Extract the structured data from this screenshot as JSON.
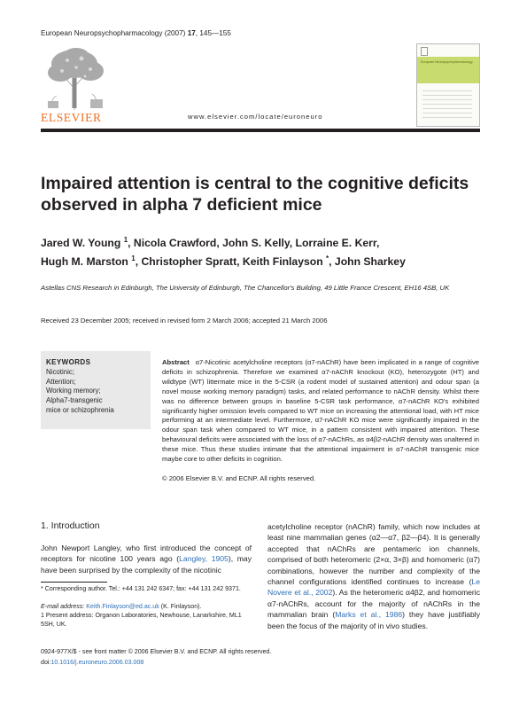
{
  "header": {
    "journal_name": "European Neuropsychopharmacology (2007)",
    "volume": "17",
    "pages": ", 145—155",
    "publisher": "ELSEVIER",
    "url": "www.elsevier.com/locate/euroneuro",
    "cover_title": "European Neuropsychopharmacology"
  },
  "article": {
    "title": "Impaired attention is central to the cognitive deficits observed in alpha 7 deficient mice",
    "authors_line1": [
      "Jared W. Young ",
      "1",
      ", Nicola Crawford, John S. Kelly, Lorraine E. Kerr,"
    ],
    "authors_line2": [
      "Hugh M. Marston ",
      "1",
      ", Christopher Spratt, Keith Finlayson ",
      "*",
      ", John Sharkey"
    ],
    "affiliation": "Astellas CNS Research in Edinburgh, The University of Edinburgh, The Chancellor's Building, 49 Little France Crescent, EH16 4SB, UK",
    "received": "Received 23 December 2005; received in revised form 2 March 2006; accepted 21 March 2006"
  },
  "keywords": {
    "heading": "KEYWORDS",
    "items": [
      "Nicotinic;",
      "Attention;",
      "Working memory;",
      "Alpha7-transgenic",
      "mice or schizophrenia"
    ]
  },
  "abstract": {
    "label": "Abstract",
    "text": "α7-Nicotinic acetylcholine receptors (α7-nAChR) have been implicated in a range of cognitive deficits in schizophrenia. Therefore we examined α7-nAChR knockout (KO), heterozygote (HT) and wildtype (WT) littermate mice in the 5-CSR (a rodent model of sustained attention) and odour span (a novel mouse working memory paradigm) tasks, and related performance to nAChR density. Whilst there was no difference between groups in baseline 5-CSR task performance, α7-nAChR KO's exhibited significantly higher omission levels compared to WT mice on increasing the attentional load, with HT mice performing at an intermediate level. Furthermore, α7-nAChR KO mice were significantly impaired in the odour span task when compared to WT mice, in a pattern consistent with impaired attention. These behavioural deficits were associated with the loss of α7-nAChRs, as α4β2-nAChR density was unaltered in these mice. Thus these studies intimate that the attentional impairment in α7-nAChR transgenic mice maybe core to other deficits in cognition.",
    "copyright": "© 2006 Elsevier B.V. and ECNP. All rights reserved."
  },
  "introduction": {
    "heading": "1. Introduction",
    "col1_text": [
      "John Newport Langley, who first introduced the concept of receptors for nicotine 100 years ago (",
      "Langley, 1905",
      "), may have been surprised by the complexity of the nicotinic"
    ],
    "col2_text": [
      "acetylcholine receptor (nAChR) family, which now includes at least nine mammalian genes (α2—α7, β2—β4). It is generally accepted that nAChRs are pentameric ion channels, comprised of both heteromeric (2×α, 3×β) and homomeric (α7) combinations, however the number and complexity of the channel configurations identified continues to increase (",
      "Le Novere et al., 2002",
      "). As the heteromeric α4β2, and homomeric α7-nAChRs, account for the majority of nAChRs in the mammalian brain (",
      "Marks et al., 1986",
      ") they have justifiably been the focus of the majority of in vivo studies."
    ]
  },
  "footnotes": {
    "corresponding": "* Corresponding author. Tel.: +44 131 242 6347; fax: +44 131 242 9371.",
    "email_label": "E-mail address:",
    "email": "Keith.Finlayson@ed.ac.uk",
    "email_suffix": " (K. Finlayson).",
    "present": "1 Present address: Organon Laboratories, Newhouse, Lanarkshire, ML1 5SH, UK."
  },
  "bottom": {
    "issn": "0924-977X/$ - see front matter © 2006 Elsevier B.V. and ECNP. All rights reserved.",
    "doi_label": "doi:",
    "doi": "10.1016/j.euroneuro.2006.03.008"
  }
}
